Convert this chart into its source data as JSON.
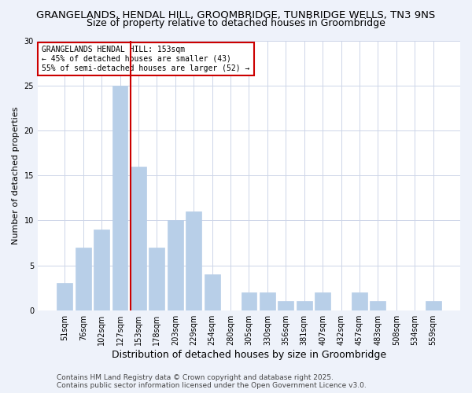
{
  "title": "GRANGELANDS, HENDAL HILL, GROOMBRIDGE, TUNBRIDGE WELLS, TN3 9NS",
  "subtitle": "Size of property relative to detached houses in Groombridge",
  "xlabel": "Distribution of detached houses by size in Groombridge",
  "ylabel": "Number of detached properties",
  "categories": [
    "51sqm",
    "76sqm",
    "102sqm",
    "127sqm",
    "153sqm",
    "178sqm",
    "203sqm",
    "229sqm",
    "254sqm",
    "280sqm",
    "305sqm",
    "330sqm",
    "356sqm",
    "381sqm",
    "407sqm",
    "432sqm",
    "457sqm",
    "483sqm",
    "508sqm",
    "534sqm",
    "559sqm"
  ],
  "values": [
    3,
    7,
    9,
    25,
    16,
    7,
    10,
    11,
    4,
    0,
    2,
    2,
    1,
    1,
    2,
    0,
    2,
    1,
    0,
    0,
    1
  ],
  "bar_color": "#b8cfe8",
  "bar_edge_color": "#b8cfe8",
  "vline_color": "#cc0000",
  "annotation_text": "GRANGELANDS HENDAL HILL: 153sqm\n← 45% of detached houses are smaller (43)\n55% of semi-detached houses are larger (52) →",
  "annotation_box_color": "#ffffff",
  "annotation_box_edge_color": "#cc0000",
  "ylim": [
    0,
    30
  ],
  "yticks": [
    0,
    5,
    10,
    15,
    20,
    25,
    30
  ],
  "footer": "Contains HM Land Registry data © Crown copyright and database right 2025.\nContains public sector information licensed under the Open Government Licence v3.0.",
  "background_color": "#eef2fa",
  "plot_background_color": "#ffffff",
  "grid_color": "#cdd5e8",
  "title_fontsize": 9.5,
  "subtitle_fontsize": 9,
  "xlabel_fontsize": 9,
  "ylabel_fontsize": 8,
  "tick_fontsize": 7,
  "annotation_fontsize": 7,
  "footer_fontsize": 6.5
}
